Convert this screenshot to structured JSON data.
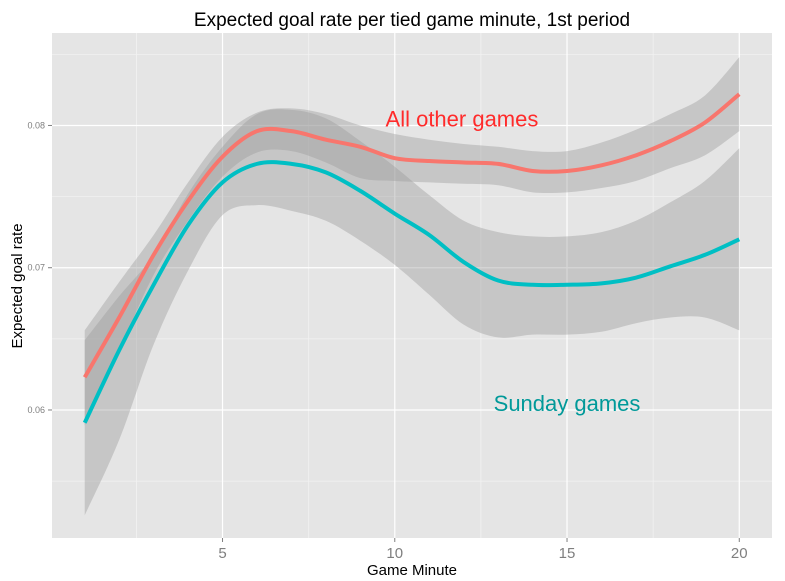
{
  "chart_data": {
    "type": "line",
    "title": "Expected goal rate per tied game minute, 1st period",
    "xlabel": "Game Minute",
    "ylabel": "Expected goal rate",
    "xlim": [
      0.05,
      20.95
    ],
    "ylim": [
      0.051,
      0.0865
    ],
    "xticks": [
      5,
      10,
      15,
      20
    ],
    "xtick_labels": [
      "5",
      "10",
      "15",
      "20"
    ],
    "yticks": [
      0.06,
      0.07,
      0.08
    ],
    "ytick_labels": [
      "0.06",
      "0.07",
      "0.08"
    ],
    "grid": true,
    "legend": "none (direct labels)",
    "x": [
      1,
      2,
      3,
      4,
      5,
      6,
      7,
      8,
      9,
      10,
      11,
      12,
      13,
      14,
      15,
      16,
      17,
      18,
      19,
      20
    ],
    "series": [
      {
        "name": "All other games",
        "color": "#F8766D",
        "label_color": "#FF2B2B",
        "values": [
          0.0623,
          0.0665,
          0.0709,
          0.0747,
          0.0778,
          0.0796,
          0.0796,
          0.079,
          0.0785,
          0.0777,
          0.0775,
          0.0774,
          0.0773,
          0.0768,
          0.0768,
          0.0772,
          0.0779,
          0.0789,
          0.0802,
          0.0822
        ],
        "upper": [
          0.0656,
          0.069,
          0.0723,
          0.076,
          0.0792,
          0.0809,
          0.0812,
          0.0808,
          0.08,
          0.0794,
          0.079,
          0.0787,
          0.0785,
          0.0782,
          0.0782,
          0.0788,
          0.0797,
          0.0808,
          0.0821,
          0.0848
        ],
        "lower": [
          0.0589,
          0.0642,
          0.0695,
          0.0733,
          0.0764,
          0.0781,
          0.0782,
          0.0774,
          0.0763,
          0.0761,
          0.076,
          0.0759,
          0.0758,
          0.0753,
          0.0753,
          0.0756,
          0.0761,
          0.077,
          0.0779,
          0.0796
        ]
      },
      {
        "name": "Sunday games",
        "color": "#00BFC4",
        "label_color": "#009999",
        "values": [
          0.0591,
          0.0642,
          0.0688,
          0.073,
          0.076,
          0.0773,
          0.0773,
          0.0767,
          0.0754,
          0.0738,
          0.0723,
          0.0704,
          0.0691,
          0.0688,
          0.0688,
          0.0689,
          0.0693,
          0.0701,
          0.0709,
          0.072
        ],
        "upper": [
          0.0649,
          0.068,
          0.0709,
          0.0752,
          0.0785,
          0.0808,
          0.0811,
          0.0805,
          0.0789,
          0.0771,
          0.0751,
          0.0733,
          0.0725,
          0.0722,
          0.0722,
          0.0725,
          0.0733,
          0.0746,
          0.0761,
          0.0784
        ],
        "lower": [
          0.0526,
          0.0579,
          0.0646,
          0.0698,
          0.0737,
          0.0744,
          0.074,
          0.0733,
          0.0719,
          0.0702,
          0.0681,
          0.066,
          0.0651,
          0.0653,
          0.0653,
          0.0655,
          0.0661,
          0.0665,
          0.0665,
          0.0656
        ]
      }
    ],
    "annotations": [
      {
        "text": "All other games",
        "x": 11.95,
        "y": 0.0805,
        "series": 0
      },
      {
        "text": "Sunday games",
        "x": 15.0,
        "y": 0.0605,
        "series": 1
      }
    ]
  }
}
